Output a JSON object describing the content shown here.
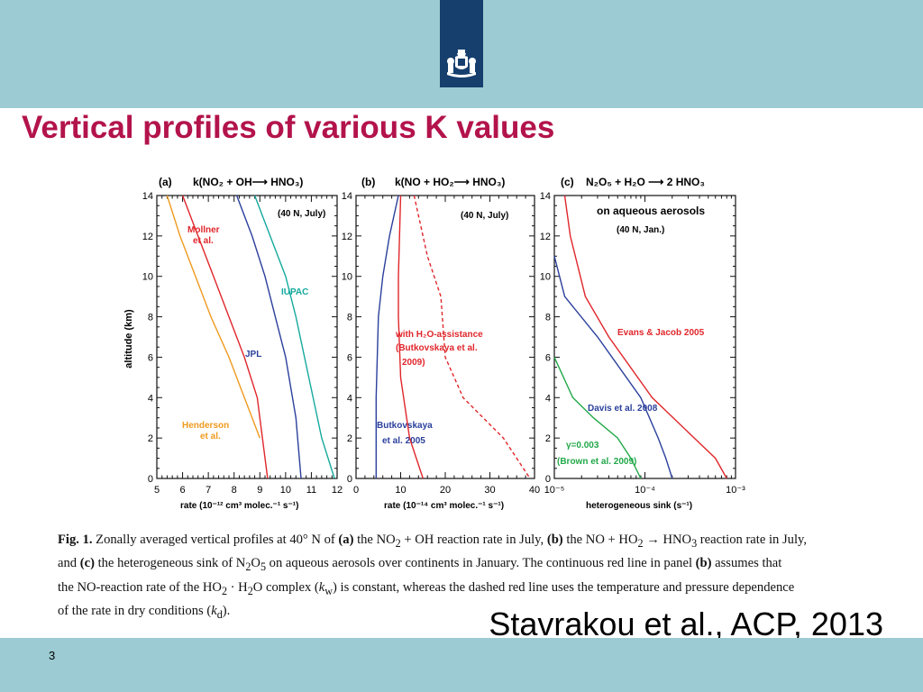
{
  "slide": {
    "title": "Vertical profiles of various K values",
    "credit": "Stavrakou et al., ACP, 2013",
    "page_number": "3"
  },
  "colors": {
    "header_band": "#9ccbd3",
    "logo_box": "#163f6e",
    "title": "#b3134b",
    "red": "#e0262b",
    "orange": "#ef9a1e",
    "blue": "#2a3f9c",
    "teal": "#14a99d",
    "green": "#23a94a"
  },
  "figure": {
    "y_axis_label": "altitude (km)",
    "panels": [
      {
        "tag": "(a)",
        "heading": "k(NO₂ + OH⟶ HNO₃)",
        "note": "(40 N, July)",
        "xlabel": "rate (10⁻¹² cm³ molec.⁻¹ s⁻¹)",
        "x_ticks": [
          "5",
          "6",
          "7",
          "8",
          "9",
          "10",
          "11",
          "12"
        ],
        "y_ticks": [
          "0",
          "2",
          "4",
          "6",
          "8",
          "10",
          "12",
          "14"
        ],
        "labels": {
          "mollner": [
            "Mollner",
            "et al."
          ],
          "iupac": "IUPAC",
          "jpl": "JPL",
          "henderson": [
            "Henderson",
            "et al."
          ]
        }
      },
      {
        "tag": "(b)",
        "heading": "k(NO + HO₂⟶ HNO₃)",
        "note": "(40 N, July)",
        "xlabel": "rate (10⁻¹⁴ cm³ molec.⁻¹ s⁻¹)",
        "x_ticks": [
          "0",
          "10",
          "20",
          "30",
          "40"
        ],
        "y_ticks": [
          "0",
          "2",
          "4",
          "6",
          "8",
          "10",
          "12",
          "14"
        ],
        "labels": {
          "h2o": [
            "with H₂O-assistance",
            "(Butkovskaya et al.",
            "2009)"
          ],
          "butk": [
            "Butkovskaya",
            "et al. 2005"
          ]
        }
      },
      {
        "tag": "(c)",
        "heading": "N₂O₅ + H₂O ⟶ 2 HNO₃",
        "note": "on aqueous aerosols",
        "note2": "(40 N, Jan.)",
        "xlabel": "heterogeneous sink (s⁻¹)",
        "x_ticks": [
          "10⁻⁵",
          "10⁻⁴",
          "10⁻³"
        ],
        "y_ticks": [
          "0",
          "2",
          "4",
          "6",
          "8",
          "10",
          "12",
          "14"
        ],
        "labels": {
          "evans": "Evans & Jacob 2005",
          "davis": "Davis et al. 2008",
          "gamma": [
            "γ=0.003",
            "(Brown et al. 2009)"
          ]
        }
      }
    ]
  },
  "chart_data": [
    {
      "type": "line",
      "title": "(a) k(NO₂ + OH⟶ HNO₃)",
      "xlabel": "rate (10⁻¹² cm³ molec.⁻¹ s⁻¹)",
      "ylabel": "altitude (km)",
      "xlim": [
        5,
        12
      ],
      "ylim": [
        0,
        14
      ],
      "series": [
        {
          "name": "Henderson et al.",
          "color": "#ef9a1e",
          "x": [
            5.4,
            5.9,
            6.5,
            7.1,
            7.8,
            8.4,
            9.0
          ],
          "y": [
            14,
            12,
            10,
            8,
            6,
            4,
            2
          ]
        },
        {
          "name": "Mollner et al.",
          "color": "#e0262b",
          "x": [
            6.0,
            6.6,
            7.2,
            7.8,
            8.4,
            8.9,
            9.3
          ],
          "y": [
            14,
            12,
            10,
            8,
            6,
            4,
            0
          ]
        },
        {
          "name": "JPL",
          "color": "#2a3f9c",
          "x": [
            8.1,
            8.7,
            9.2,
            9.6,
            10.0,
            10.4,
            10.6
          ],
          "y": [
            14,
            12,
            10,
            8,
            6,
            3,
            0
          ]
        },
        {
          "name": "IUPAC",
          "color": "#14a99d",
          "x": [
            8.8,
            9.4,
            10.0,
            10.4,
            10.9,
            11.4,
            11.9
          ],
          "y": [
            14,
            12,
            10,
            8,
            5,
            2,
            0
          ]
        }
      ]
    },
    {
      "type": "line",
      "title": "(b) k(NO + HO₂⟶ HNO₃)",
      "xlabel": "rate (10⁻¹⁴ cm³ molec.⁻¹ s⁻¹)",
      "ylabel": "altitude (km)",
      "xlim": [
        0,
        40
      ],
      "ylim": [
        0,
        14
      ],
      "series": [
        {
          "name": "Butkovskaya et al. 2005",
          "color": "#2a3f9c",
          "x": [
            9.5,
            7.5,
            6.0,
            5.0,
            4.5,
            4.5
          ],
          "y": [
            14,
            12,
            10,
            8,
            4,
            0
          ]
        },
        {
          "name": "with H2O-assistance (Butkovskaya et al. 2009) continuous",
          "color": "#e0262b",
          "x": [
            10,
            9.5,
            9.5,
            10,
            12,
            15
          ],
          "y": [
            14,
            10,
            8,
            5,
            2,
            0
          ]
        },
        {
          "name": "with H2O-assistance (Butkovskaya et al. 2009) dashed",
          "color": "#e0262b",
          "x": [
            13,
            16,
            19,
            20,
            24,
            33,
            39
          ],
          "y": [
            14,
            11,
            9,
            6,
            4,
            2,
            0
          ]
        }
      ]
    },
    {
      "type": "line",
      "title": "(c) N₂O₅ + H₂O ⟶ 2 HNO₃",
      "xlabel": "heterogeneous sink (s⁻¹)",
      "ylabel": "altitude (km)",
      "xlim": [
        1e-05,
        0.001
      ],
      "ylim": [
        0,
        14
      ],
      "xscale": "log",
      "series": [
        {
          "name": "Evans & Jacob 2005",
          "color": "#e0262b",
          "x": [
            1.3e-05,
            1.5e-05,
            2.2e-05,
            4e-05,
            0.00012,
            0.00035,
            0.0006,
            0.0008
          ],
          "y": [
            14,
            12,
            9,
            7,
            4,
            2,
            1,
            0
          ]
        },
        {
          "name": "Davis et al. 2008",
          "color": "#2a3f9c",
          "x": [
            1e-05,
            1.3e-05,
            3e-05,
            9e-05,
            0.00014,
            0.00017,
            0.0002
          ],
          "y": [
            11,
            9,
            7,
            4,
            2,
            1,
            0
          ]
        },
        {
          "name": "γ=0.003 (Brown et al. 2009)",
          "color": "#23a94a",
          "x": [
            1e-05,
            1.6e-05,
            2.7e-05,
            5e-05,
            7e-05,
            9e-05
          ],
          "y": [
            6,
            4,
            3,
            2,
            1,
            0
          ]
        }
      ]
    }
  ]
}
